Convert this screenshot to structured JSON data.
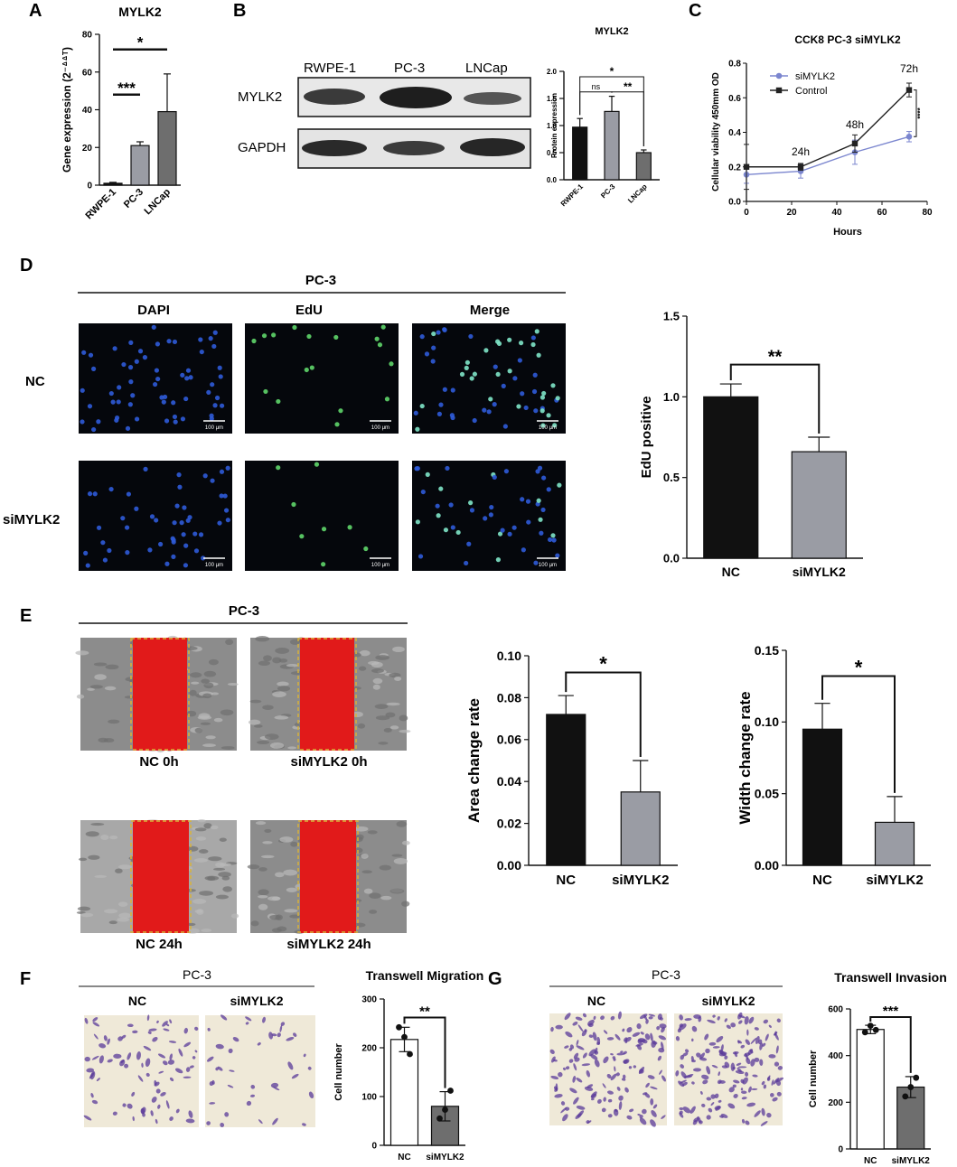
{
  "panel_labels": [
    "A",
    "B",
    "C",
    "D",
    "E",
    "F",
    "G"
  ],
  "colors": {
    "black": "#111111",
    "grey": "#9a9ca4",
    "dark_grey": "#6e6e6e",
    "sikd": "#7b86cf",
    "red": "#e11a1a",
    "blue_cell": "#2f5bd8",
    "green_cell": "#5fd66a",
    "gold_border": "#d8b23a",
    "purple_cell": "#5a3a9a"
  },
  "panelB": {
    "cell_lines": [
      "RWPE-1",
      "PC-3",
      "LNCap"
    ],
    "proteins": [
      "MYLK2",
      "GAPDH"
    ]
  },
  "panelD": {
    "header": "PC-3",
    "columns": [
      "DAPI",
      "EdU",
      "Merge"
    ],
    "rows": [
      "NC",
      "siMYLK2"
    ],
    "scale_bar": "100 μm"
  },
  "panelE": {
    "header": "PC-3",
    "captions": [
      "NC 0h",
      "siMYLK2 0h",
      "NC 24h",
      "siMYLK2 24h"
    ]
  },
  "panelF": {
    "header": "PC-3",
    "columns": [
      "NC",
      "siMYLK2"
    ]
  },
  "panelG": {
    "header": "PC-3",
    "columns": [
      "NC",
      "siMYLK2"
    ]
  },
  "chart_data": [
    {
      "id": "A",
      "type": "bar",
      "title": "MYLK2",
      "ylabel": "Gene expression (2⁻ᐞᐞᵀ)",
      "categories": [
        "RWPE-1",
        "PC-3",
        "LNCap"
      ],
      "values": [
        1,
        21,
        39
      ],
      "errors": [
        0.5,
        2,
        20
      ],
      "colors": [
        "#111111",
        "#9a9ca4",
        "#6e6e6e"
      ],
      "ylim": [
        0,
        80
      ],
      "yticks": [
        0,
        20,
        40,
        60,
        80
      ],
      "ytick_labels": [
        "0",
        "20",
        "40",
        "60",
        "80"
      ],
      "significance": [
        {
          "from": 0,
          "to": 1,
          "label": "***",
          "y": 48
        },
        {
          "from": 0,
          "to": 2,
          "label": "*",
          "y": 72
        }
      ]
    },
    {
      "id": "B",
      "type": "bar",
      "title": "MYLK2",
      "ylabel": "Protein expression",
      "categories": [
        "RWPE-1",
        "PC-3",
        "LNCap"
      ],
      "values": [
        0.97,
        1.26,
        0.5
      ],
      "errors": [
        0.16,
        0.28,
        0.05
      ],
      "colors": [
        "#111111",
        "#9a9ca4",
        "#6e6e6e"
      ],
      "ylim": [
        0,
        2.0
      ],
      "yticks": [
        0,
        0.5,
        1,
        1.5,
        2
      ],
      "ytick_labels": [
        "0.0",
        "0.5",
        "1.0",
        "1.5",
        "2.0"
      ],
      "significance": [
        {
          "from": 0,
          "to": 1,
          "label": "ns",
          "y": 1.62
        },
        {
          "from": 1,
          "to": 2,
          "label": "**",
          "y": 1.62
        },
        {
          "from": 0,
          "to": 2,
          "label": "*",
          "y": 1.9
        }
      ]
    },
    {
      "id": "C",
      "type": "line",
      "title": "CCK8 PC-3 siMYLK2",
      "xlabel": "Hours",
      "ylabel": "Cellular viability 450mm OD",
      "xlim": [
        0,
        80
      ],
      "xticks": [
        0,
        20,
        40,
        60,
        80
      ],
      "xtick_labels": [
        "0",
        "20",
        "40",
        "60",
        "80"
      ],
      "ylim": [
        0,
        0.8
      ],
      "yticks": [
        0,
        0.2,
        0.4,
        0.6,
        0.8
      ],
      "ytick_labels": [
        "0.0",
        "0.2",
        "0.4",
        "0.6",
        "0.8"
      ],
      "x": [
        0,
        24,
        48,
        72
      ],
      "series": [
        {
          "name": "siMYLK2",
          "values": [
            0.155,
            0.175,
            0.285,
            0.375
          ],
          "errors": [
            0.05,
            0.04,
            0.07,
            0.03
          ],
          "color": "#7b86cf",
          "marker": "circle"
        },
        {
          "name": "Control",
          "values": [
            0.2,
            0.2,
            0.335,
            0.645
          ],
          "errors": [
            0.13,
            0.02,
            0.05,
            0.04
          ],
          "color": "#222222",
          "marker": "square"
        }
      ],
      "annotations": [
        "24h",
        "48h",
        "72h"
      ],
      "significance": [
        {
          "label": "****"
        }
      ]
    },
    {
      "id": "D",
      "type": "bar",
      "ylabel": "EdU positive",
      "categories": [
        "NC",
        "siMYLK2"
      ],
      "values": [
        1.0,
        0.66
      ],
      "errors": [
        0.08,
        0.09
      ],
      "colors": [
        "#111111",
        "#9a9ca4"
      ],
      "ylim": [
        0,
        1.5
      ],
      "yticks": [
        0,
        0.5,
        1,
        1.5
      ],
      "ytick_labels": [
        "0.0",
        "0.5",
        "1.0",
        "1.5"
      ],
      "significance": [
        {
          "from": 0,
          "to": 1,
          "label": "**",
          "y": 1.2
        }
      ]
    },
    {
      "id": "E1",
      "type": "bar",
      "ylabel": "Area change rate",
      "categories": [
        "NC",
        "siMYLK2"
      ],
      "values": [
        0.072,
        0.035
      ],
      "errors": [
        0.009,
        0.015
      ],
      "colors": [
        "#111111",
        "#9a9ca4"
      ],
      "ylim": [
        0,
        0.1
      ],
      "yticks": [
        0,
        0.02,
        0.04,
        0.06,
        0.08,
        0.1
      ],
      "ytick_labels": [
        "0.00",
        "0.02",
        "0.04",
        "0.06",
        "0.08",
        "0.10"
      ],
      "significance": [
        {
          "from": 0,
          "to": 1,
          "label": "*",
          "y": 0.092
        }
      ]
    },
    {
      "id": "E2",
      "type": "bar",
      "ylabel": "Width change rate",
      "categories": [
        "NC",
        "siMYLK2"
      ],
      "values": [
        0.095,
        0.03
      ],
      "errors": [
        0.018,
        0.018
      ],
      "colors": [
        "#111111",
        "#9a9ca4"
      ],
      "ylim": [
        0,
        0.15
      ],
      "yticks": [
        0,
        0.05,
        0.1,
        0.15
      ],
      "ytick_labels": [
        "0.00",
        "0.05",
        "0.10",
        "0.15"
      ],
      "significance": [
        {
          "from": 0,
          "to": 1,
          "label": "*",
          "y": 0.132
        }
      ]
    },
    {
      "id": "F",
      "type": "bar",
      "title": "Transwell Migration",
      "ylabel": "Cell number",
      "categories": [
        "NC",
        "siMYLK2"
      ],
      "values": [
        217,
        80
      ],
      "errors": [
        25,
        30
      ],
      "colors": [
        "#ffffff",
        "#6e6e6e"
      ],
      "points": [
        [
          242,
          222,
          187
        ],
        [
          55,
          73,
          112
        ]
      ],
      "ylim": [
        0,
        300
      ],
      "yticks": [
        0,
        100,
        200,
        300
      ],
      "ytick_labels": [
        "0",
        "100",
        "200",
        "300"
      ],
      "significance": [
        {
          "from": 0,
          "to": 1,
          "label": "**",
          "y": 262
        }
      ]
    },
    {
      "id": "G",
      "type": "bar",
      "title": "Transwell Invasion",
      "ylabel": "Cell number",
      "categories": [
        "NC",
        "siMYLK2"
      ],
      "values": [
        512,
        265
      ],
      "errors": [
        18,
        45
      ],
      "colors": [
        "#ffffff",
        "#6e6e6e"
      ],
      "points": [
        [
          500,
          528,
          510
        ],
        [
          225,
          265,
          305
        ]
      ],
      "ylim": [
        0,
        600
      ],
      "yticks": [
        0,
        200,
        400,
        600
      ],
      "ytick_labels": [
        "0",
        "200",
        "400",
        "600"
      ],
      "significance": [
        {
          "from": 0,
          "to": 1,
          "label": "***",
          "y": 565
        }
      ]
    }
  ]
}
